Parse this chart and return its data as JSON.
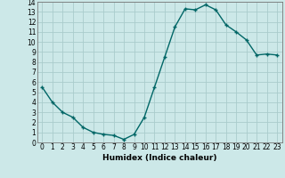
{
  "x": [
    0,
    1,
    2,
    3,
    4,
    5,
    6,
    7,
    8,
    9,
    10,
    11,
    12,
    13,
    14,
    15,
    16,
    17,
    18,
    19,
    20,
    21,
    22,
    23
  ],
  "y": [
    5.5,
    4.0,
    3.0,
    2.5,
    1.5,
    1.0,
    0.8,
    0.7,
    0.3,
    0.8,
    2.5,
    5.5,
    8.5,
    11.5,
    13.3,
    13.2,
    13.7,
    13.2,
    11.7,
    11.0,
    10.2,
    8.7,
    8.8,
    8.7
  ],
  "xlabel": "Humidex (Indice chaleur)",
  "xlim": [
    -0.5,
    23.5
  ],
  "ylim": [
    0,
    14
  ],
  "xticks": [
    0,
    1,
    2,
    3,
    4,
    5,
    6,
    7,
    8,
    9,
    10,
    11,
    12,
    13,
    14,
    15,
    16,
    17,
    18,
    19,
    20,
    21,
    22,
    23
  ],
  "yticks": [
    0,
    1,
    2,
    3,
    4,
    5,
    6,
    7,
    8,
    9,
    10,
    11,
    12,
    13,
    14
  ],
  "line_color": "#006666",
  "bg_color": "#cce8e8",
  "grid_color": "#aacccc",
  "marker": "+",
  "marker_size": 3.5,
  "marker_edge_width": 1.0,
  "line_width": 1.0,
  "tick_fontsize": 5.5,
  "xlabel_fontsize": 6.5
}
